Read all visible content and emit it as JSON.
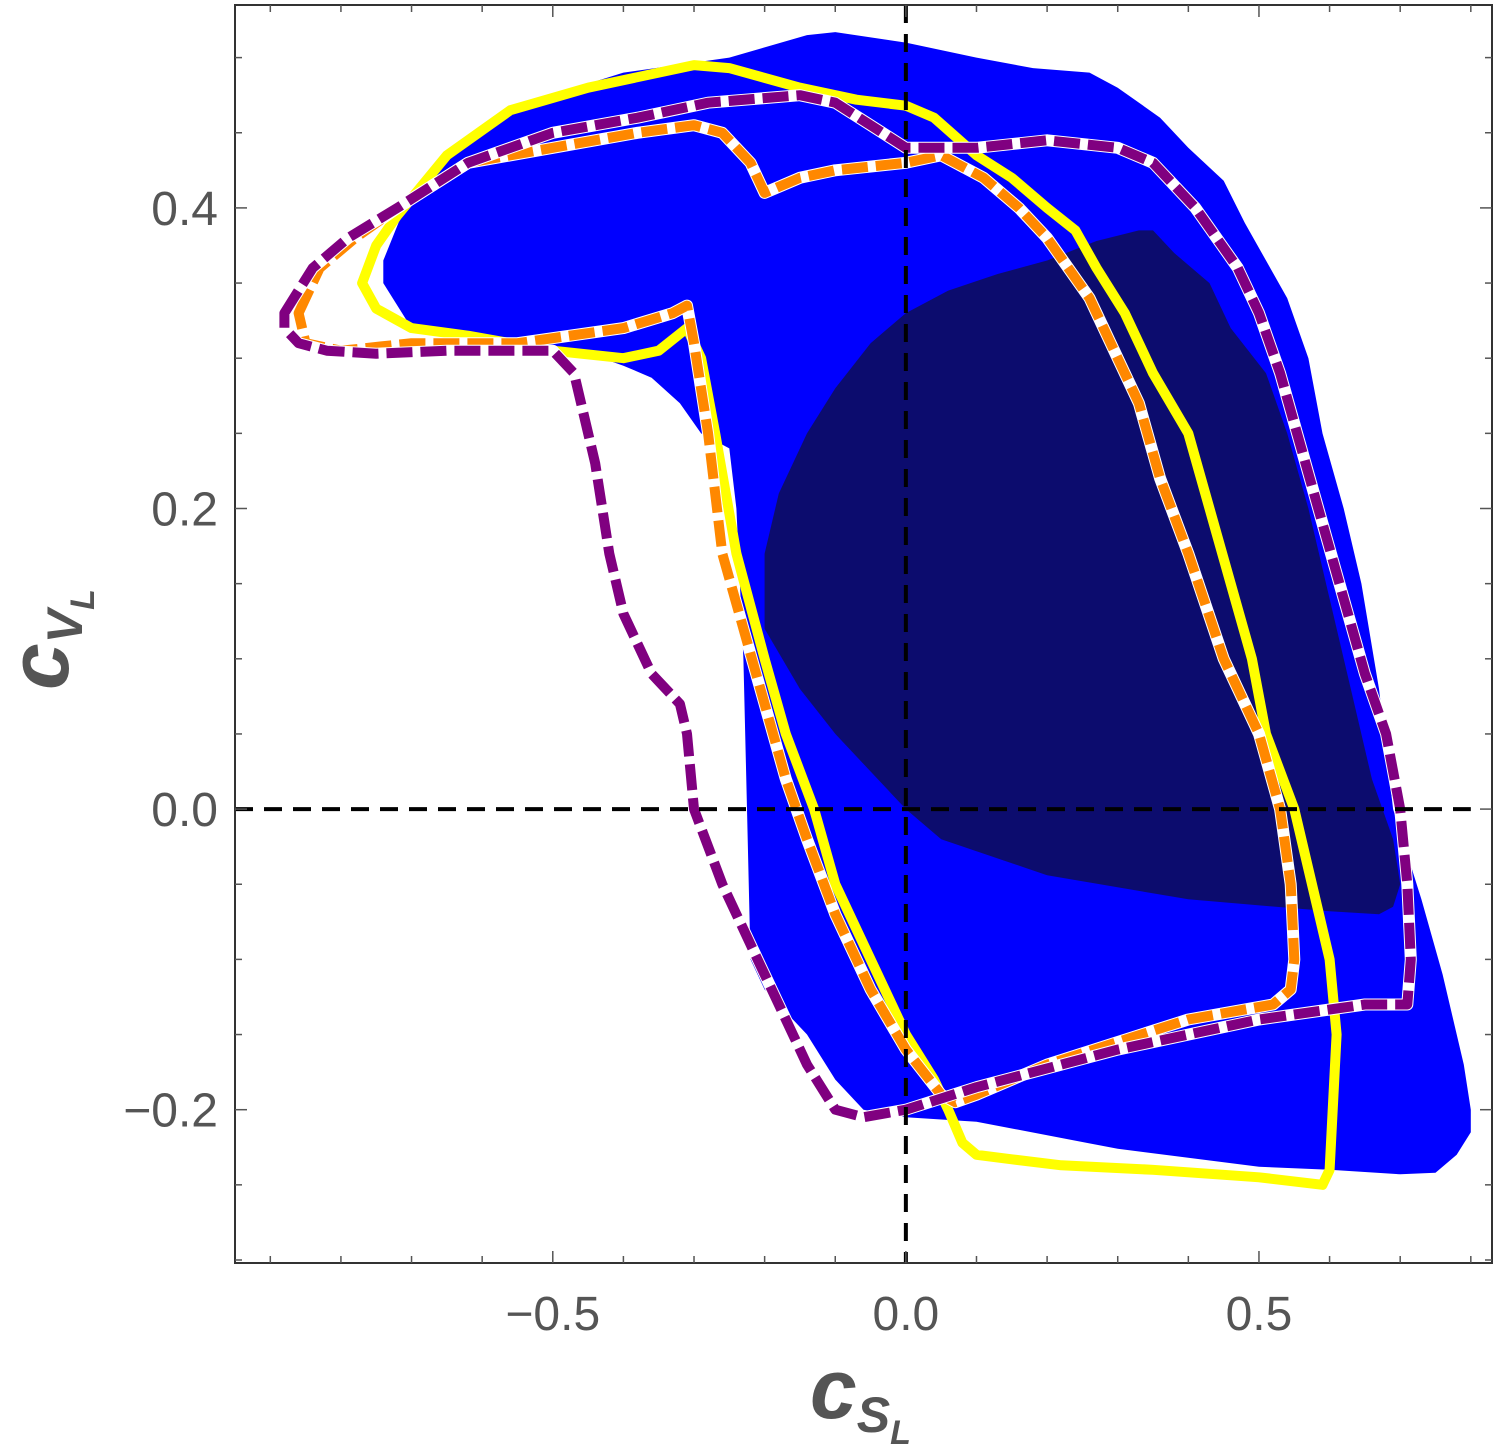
{
  "chart_data": {
    "type": "area",
    "title": "",
    "xlabel": {
      "main": "c",
      "sub": "S",
      "subsub": "L"
    },
    "ylabel": {
      "main": "c",
      "sub": "V",
      "subsub": "L"
    },
    "xlim": [
      -0.95,
      0.83
    ],
    "ylim": [
      -0.302,
      0.535
    ],
    "x_ticks": [
      {
        "value": -0.5,
        "label": "−0.5"
      },
      {
        "value": 0.0,
        "label": "0.0"
      },
      {
        "value": 0.5,
        "label": "0.5"
      }
    ],
    "y_ticks": [
      {
        "value": -0.2,
        "label": "−0.2"
      },
      {
        "value": 0.0,
        "label": "0.0"
      },
      {
        "value": 0.2,
        "label": "0.2"
      },
      {
        "value": 0.4,
        "label": "0.4"
      }
    ],
    "x_minor_step": 0.1,
    "y_minor_step": 0.05,
    "reference_lines": [
      {
        "orientation": "vertical",
        "value": 0.0,
        "style": "dashed",
        "color": "#000000"
      },
      {
        "orientation": "horizontal",
        "value": 0.0,
        "style": "dashed",
        "color": "#000000"
      }
    ],
    "regions": [
      {
        "style": "filled",
        "color": "#0000ff",
        "points": [
          [
            -0.74,
            0.365
          ],
          [
            -0.71,
            0.4
          ],
          [
            -0.64,
            0.44
          ],
          [
            -0.55,
            0.468
          ],
          [
            -0.4,
            0.49
          ],
          [
            -0.25,
            0.5
          ],
          [
            -0.14,
            0.515
          ],
          [
            -0.1,
            0.517
          ],
          [
            0.0,
            0.51
          ],
          [
            0.1,
            0.5
          ],
          [
            0.18,
            0.493
          ],
          [
            0.26,
            0.49
          ],
          [
            0.3,
            0.48
          ],
          [
            0.36,
            0.46
          ],
          [
            0.4,
            0.44
          ],
          [
            0.45,
            0.418
          ],
          [
            0.48,
            0.39
          ],
          [
            0.51,
            0.365
          ],
          [
            0.54,
            0.34
          ],
          [
            0.57,
            0.3
          ],
          [
            0.59,
            0.25
          ],
          [
            0.62,
            0.2
          ],
          [
            0.645,
            0.15
          ],
          [
            0.67,
            0.08
          ],
          [
            0.69,
            0.0
          ],
          [
            0.73,
            -0.06
          ],
          [
            0.76,
            -0.11
          ],
          [
            0.79,
            -0.17
          ],
          [
            0.8,
            -0.2
          ],
          [
            0.8,
            -0.215
          ],
          [
            0.78,
            -0.23
          ],
          [
            0.75,
            -0.242
          ],
          [
            0.7,
            -0.243
          ],
          [
            0.6,
            -0.24
          ],
          [
            0.5,
            -0.238
          ],
          [
            0.3,
            -0.226
          ],
          [
            0.1,
            -0.208
          ],
          [
            0.0,
            -0.205
          ],
          [
            -0.06,
            -0.2
          ],
          [
            -0.1,
            -0.18
          ],
          [
            -0.14,
            -0.15
          ],
          [
            -0.2,
            -0.12
          ],
          [
            -0.22,
            -0.1
          ],
          [
            -0.225,
            0.0
          ],
          [
            -0.23,
            0.1
          ],
          [
            -0.235,
            0.15
          ],
          [
            -0.24,
            0.2
          ],
          [
            -0.25,
            0.24
          ],
          [
            -0.29,
            0.25
          ],
          [
            -0.32,
            0.27
          ],
          [
            -0.36,
            0.287
          ],
          [
            -0.4,
            0.295
          ],
          [
            -0.46,
            0.305
          ],
          [
            -0.53,
            0.31
          ],
          [
            -0.6,
            0.31
          ],
          [
            -0.66,
            0.315
          ],
          [
            -0.7,
            0.32
          ],
          [
            -0.72,
            0.335
          ],
          [
            -0.74,
            0.35
          ]
        ]
      },
      {
        "style": "filled",
        "color": "#0c0c6e",
        "points": [
          [
            -0.2,
            0.17
          ],
          [
            -0.18,
            0.21
          ],
          [
            -0.14,
            0.25
          ],
          [
            -0.1,
            0.28
          ],
          [
            -0.05,
            0.31
          ],
          [
            0.0,
            0.33
          ],
          [
            0.06,
            0.345
          ],
          [
            0.13,
            0.356
          ],
          [
            0.2,
            0.365
          ],
          [
            0.27,
            0.378
          ],
          [
            0.33,
            0.385
          ],
          [
            0.35,
            0.385
          ],
          [
            0.38,
            0.37
          ],
          [
            0.43,
            0.35
          ],
          [
            0.46,
            0.32
          ],
          [
            0.51,
            0.29
          ],
          [
            0.54,
            0.25
          ],
          [
            0.57,
            0.2
          ],
          [
            0.6,
            0.14
          ],
          [
            0.63,
            0.08
          ],
          [
            0.66,
            0.02
          ],
          [
            0.69,
            -0.02
          ],
          [
            0.7,
            -0.05
          ],
          [
            0.69,
            -0.065
          ],
          [
            0.67,
            -0.07
          ],
          [
            0.6,
            -0.068
          ],
          [
            0.4,
            -0.06
          ],
          [
            0.2,
            -0.044
          ],
          [
            0.05,
            -0.02
          ],
          [
            0.0,
            0.0
          ],
          [
            -0.1,
            0.05
          ],
          [
            -0.15,
            0.08
          ],
          [
            -0.2,
            0.12
          ]
        ]
      },
      {
        "style": "solid",
        "color": "#ffff00",
        "points": [
          [
            -0.77,
            0.35
          ],
          [
            -0.75,
            0.375
          ],
          [
            -0.72,
            0.395
          ],
          [
            -0.65,
            0.435
          ],
          [
            -0.56,
            0.465
          ],
          [
            -0.45,
            0.48
          ],
          [
            -0.3,
            0.495
          ],
          [
            -0.25,
            0.493
          ],
          [
            -0.15,
            0.48
          ],
          [
            -0.07,
            0.472
          ],
          [
            0.0,
            0.468
          ],
          [
            0.04,
            0.46
          ],
          [
            0.1,
            0.435
          ],
          [
            0.15,
            0.42
          ],
          [
            0.2,
            0.4
          ],
          [
            0.24,
            0.385
          ],
          [
            0.27,
            0.36
          ],
          [
            0.31,
            0.33
          ],
          [
            0.35,
            0.29
          ],
          [
            0.4,
            0.25
          ],
          [
            0.43,
            0.2
          ],
          [
            0.46,
            0.15
          ],
          [
            0.49,
            0.1
          ],
          [
            0.51,
            0.05
          ],
          [
            0.55,
            0.0
          ],
          [
            0.58,
            -0.06
          ],
          [
            0.6,
            -0.1
          ],
          [
            0.61,
            -0.15
          ],
          [
            0.6,
            -0.24
          ],
          [
            0.59,
            -0.25
          ],
          [
            0.5,
            -0.245
          ],
          [
            0.35,
            -0.24
          ],
          [
            0.22,
            -0.237
          ],
          [
            0.15,
            -0.233
          ],
          [
            0.1,
            -0.23
          ],
          [
            0.08,
            -0.222
          ],
          [
            0.06,
            -0.2
          ],
          [
            0.04,
            -0.18
          ],
          [
            0.0,
            -0.15
          ],
          [
            -0.05,
            -0.1
          ],
          [
            -0.1,
            -0.05
          ],
          [
            -0.13,
            0.0
          ],
          [
            -0.17,
            0.05
          ],
          [
            -0.2,
            0.1
          ],
          [
            -0.24,
            0.17
          ],
          [
            -0.27,
            0.25
          ],
          [
            -0.29,
            0.3
          ],
          [
            -0.31,
            0.32
          ],
          [
            -0.35,
            0.305
          ],
          [
            -0.4,
            0.3
          ],
          [
            -0.5,
            0.305
          ],
          [
            -0.62,
            0.315
          ],
          [
            -0.7,
            0.32
          ],
          [
            -0.75,
            0.333
          ]
        ]
      },
      {
        "style": "dashed",
        "color": "#ff8800",
        "points": [
          [
            -0.86,
            0.33
          ],
          [
            -0.83,
            0.36
          ],
          [
            -0.78,
            0.38
          ],
          [
            -0.72,
            0.4
          ],
          [
            -0.62,
            0.43
          ],
          [
            -0.5,
            0.44
          ],
          [
            -0.38,
            0.45
          ],
          [
            -0.3,
            0.455
          ],
          [
            -0.26,
            0.45
          ],
          [
            -0.22,
            0.43
          ],
          [
            -0.2,
            0.41
          ],
          [
            -0.15,
            0.42
          ],
          [
            -0.1,
            0.425
          ],
          [
            0.0,
            0.43
          ],
          [
            0.05,
            0.435
          ],
          [
            0.11,
            0.42
          ],
          [
            0.16,
            0.4
          ],
          [
            0.2,
            0.38
          ],
          [
            0.26,
            0.34
          ],
          [
            0.3,
            0.3
          ],
          [
            0.33,
            0.27
          ],
          [
            0.36,
            0.22
          ],
          [
            0.4,
            0.17
          ],
          [
            0.45,
            0.1
          ],
          [
            0.5,
            0.05
          ],
          [
            0.53,
            0.0
          ],
          [
            0.545,
            -0.05
          ],
          [
            0.55,
            -0.1
          ],
          [
            0.545,
            -0.12
          ],
          [
            0.52,
            -0.13
          ],
          [
            0.4,
            -0.14
          ],
          [
            0.2,
            -0.17
          ],
          [
            0.1,
            -0.19
          ],
          [
            0.07,
            -0.195
          ],
          [
            0.05,
            -0.19
          ],
          [
            0.0,
            -0.16
          ],
          [
            -0.05,
            -0.12
          ],
          [
            -0.1,
            -0.07
          ],
          [
            -0.14,
            -0.02
          ],
          [
            -0.17,
            0.02
          ],
          [
            -0.2,
            0.07
          ],
          [
            -0.23,
            0.12
          ],
          [
            -0.26,
            0.17
          ],
          [
            -0.28,
            0.25
          ],
          [
            -0.3,
            0.31
          ],
          [
            -0.31,
            0.335
          ],
          [
            -0.33,
            0.33
          ],
          [
            -0.4,
            0.32
          ],
          [
            -0.55,
            0.31
          ],
          [
            -0.7,
            0.31
          ],
          [
            -0.8,
            0.305
          ],
          [
            -0.85,
            0.31
          ]
        ]
      },
      {
        "style": "dashed",
        "color": "#800080",
        "points": [
          [
            -0.88,
            0.33
          ],
          [
            -0.84,
            0.36
          ],
          [
            -0.79,
            0.38
          ],
          [
            -0.72,
            0.4
          ],
          [
            -0.62,
            0.43
          ],
          [
            -0.5,
            0.45
          ],
          [
            -0.38,
            0.46
          ],
          [
            -0.28,
            0.47
          ],
          [
            -0.15,
            0.475
          ],
          [
            -0.1,
            0.47
          ],
          [
            -0.05,
            0.455
          ],
          [
            0.0,
            0.44
          ],
          [
            0.05,
            0.44
          ],
          [
            0.1,
            0.44
          ],
          [
            0.2,
            0.445
          ],
          [
            0.3,
            0.44
          ],
          [
            0.35,
            0.43
          ],
          [
            0.41,
            0.4
          ],
          [
            0.47,
            0.36
          ],
          [
            0.5,
            0.33
          ],
          [
            0.53,
            0.29
          ],
          [
            0.56,
            0.24
          ],
          [
            0.59,
            0.19
          ],
          [
            0.62,
            0.14
          ],
          [
            0.65,
            0.09
          ],
          [
            0.68,
            0.05
          ],
          [
            0.7,
            0.0
          ],
          [
            0.71,
            -0.05
          ],
          [
            0.715,
            -0.1
          ],
          [
            0.71,
            -0.13
          ],
          [
            0.65,
            -0.13
          ],
          [
            0.5,
            -0.14
          ],
          [
            0.3,
            -0.16
          ],
          [
            0.1,
            -0.185
          ],
          [
            0.0,
            -0.2
          ],
          [
            -0.06,
            -0.205
          ],
          [
            -0.1,
            -0.2
          ],
          [
            -0.14,
            -0.17
          ],
          [
            -0.18,
            -0.13
          ],
          [
            -0.22,
            -0.09
          ],
          [
            -0.26,
            -0.05
          ],
          [
            -0.3,
            0.0
          ],
          [
            -0.31,
            0.05
          ],
          [
            -0.32,
            0.07
          ],
          [
            -0.36,
            0.09
          ],
          [
            -0.4,
            0.13
          ],
          [
            -0.42,
            0.17
          ],
          [
            -0.44,
            0.23
          ],
          [
            -0.47,
            0.29
          ],
          [
            -0.5,
            0.305
          ],
          [
            -0.55,
            0.305
          ],
          [
            -0.65,
            0.305
          ],
          [
            -0.75,
            0.303
          ],
          [
            -0.82,
            0.305
          ],
          [
            -0.86,
            0.31
          ],
          [
            -0.88,
            0.32
          ]
        ]
      }
    ]
  }
}
